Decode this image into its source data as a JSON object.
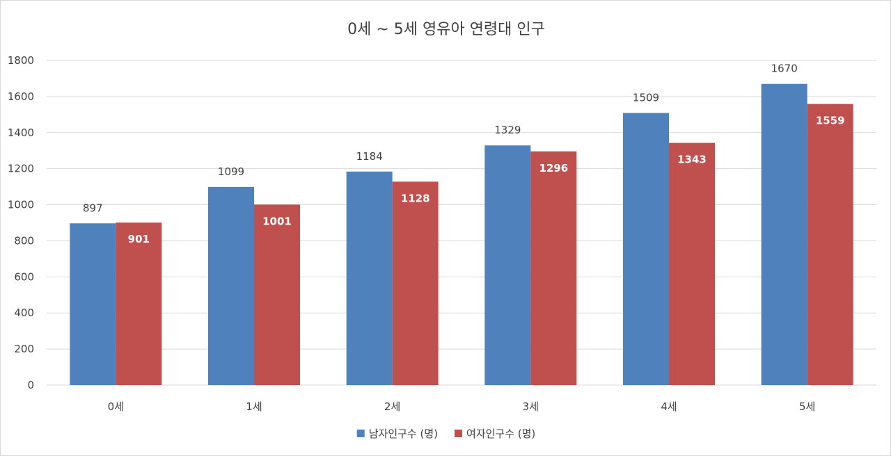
{
  "chart_data": {
    "type": "bar",
    "title": "0세 ~ 5세 영유아 연령대 인구",
    "categories": [
      "0세",
      "1세",
      "2세",
      "3세",
      "4세",
      "5세"
    ],
    "series": [
      {
        "name": "남자인구수 (명)",
        "color": "#4F81BD",
        "label_position": "outside-end",
        "values": [
          897,
          1099,
          1184,
          1329,
          1509,
          1670
        ]
      },
      {
        "name": "여자인구수 (명)",
        "color": "#C0504D",
        "label_position": "inside-end",
        "values": [
          901,
          1001,
          1128,
          1296,
          1343,
          1559
        ]
      }
    ],
    "xlabel": "",
    "ylabel": "",
    "ylim": [
      0,
      1800
    ],
    "yticks": [
      0,
      200,
      400,
      600,
      800,
      1000,
      1200,
      1400,
      1600,
      1800
    ],
    "grid": true,
    "legend": "bottom",
    "gridline_color": "#d9d9d9"
  }
}
